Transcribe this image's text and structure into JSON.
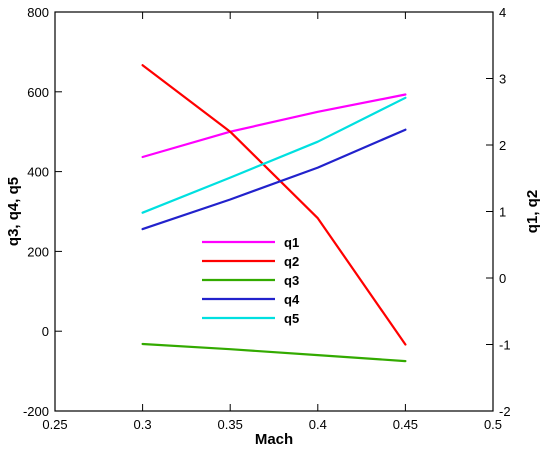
{
  "chart_data": {
    "type": "line",
    "xlabel": "Mach",
    "ylabel_left": "q3, q4, q5",
    "ylabel_right": "q1, q2",
    "xlim": [
      0.25,
      0.5
    ],
    "ylim_left": [
      -200,
      800
    ],
    "ylim_right": [
      -2,
      4
    ],
    "x_ticks": [
      "0.25",
      "0.3",
      "0.35",
      "0.4",
      "0.45",
      "0.5"
    ],
    "y_left_ticks": [
      "-200",
      "0",
      "200",
      "400",
      "600",
      "800"
    ],
    "y_right_ticks": [
      "-2",
      "-1",
      "0",
      "1",
      "2",
      "3",
      "4"
    ],
    "grid": false,
    "legend_position": "center",
    "series": [
      {
        "name": "q1",
        "axis": "right",
        "color": "#ff00ff",
        "x": [
          0.3,
          0.35,
          0.4,
          0.45
        ],
        "y": [
          1.82,
          2.2,
          2.5,
          2.76
        ]
      },
      {
        "name": "q2",
        "axis": "right",
        "color": "#ff0000",
        "x": [
          0.3,
          0.35,
          0.4,
          0.45
        ],
        "y": [
          3.2,
          2.2,
          0.9,
          -1.0
        ]
      },
      {
        "name": "q3",
        "axis": "left",
        "color": "#33aa00",
        "x": [
          0.3,
          0.35,
          0.4,
          0.45
        ],
        "y": [
          -32,
          -45,
          -60,
          -75
        ]
      },
      {
        "name": "q4",
        "axis": "left",
        "color": "#2222cc",
        "x": [
          0.3,
          0.35,
          0.4,
          0.45
        ],
        "y": [
          256,
          330,
          410,
          505
        ]
      },
      {
        "name": "q5",
        "axis": "left",
        "color": "#00e0e0",
        "x": [
          0.3,
          0.35,
          0.4,
          0.45
        ],
        "y": [
          297,
          385,
          475,
          585
        ]
      }
    ]
  }
}
